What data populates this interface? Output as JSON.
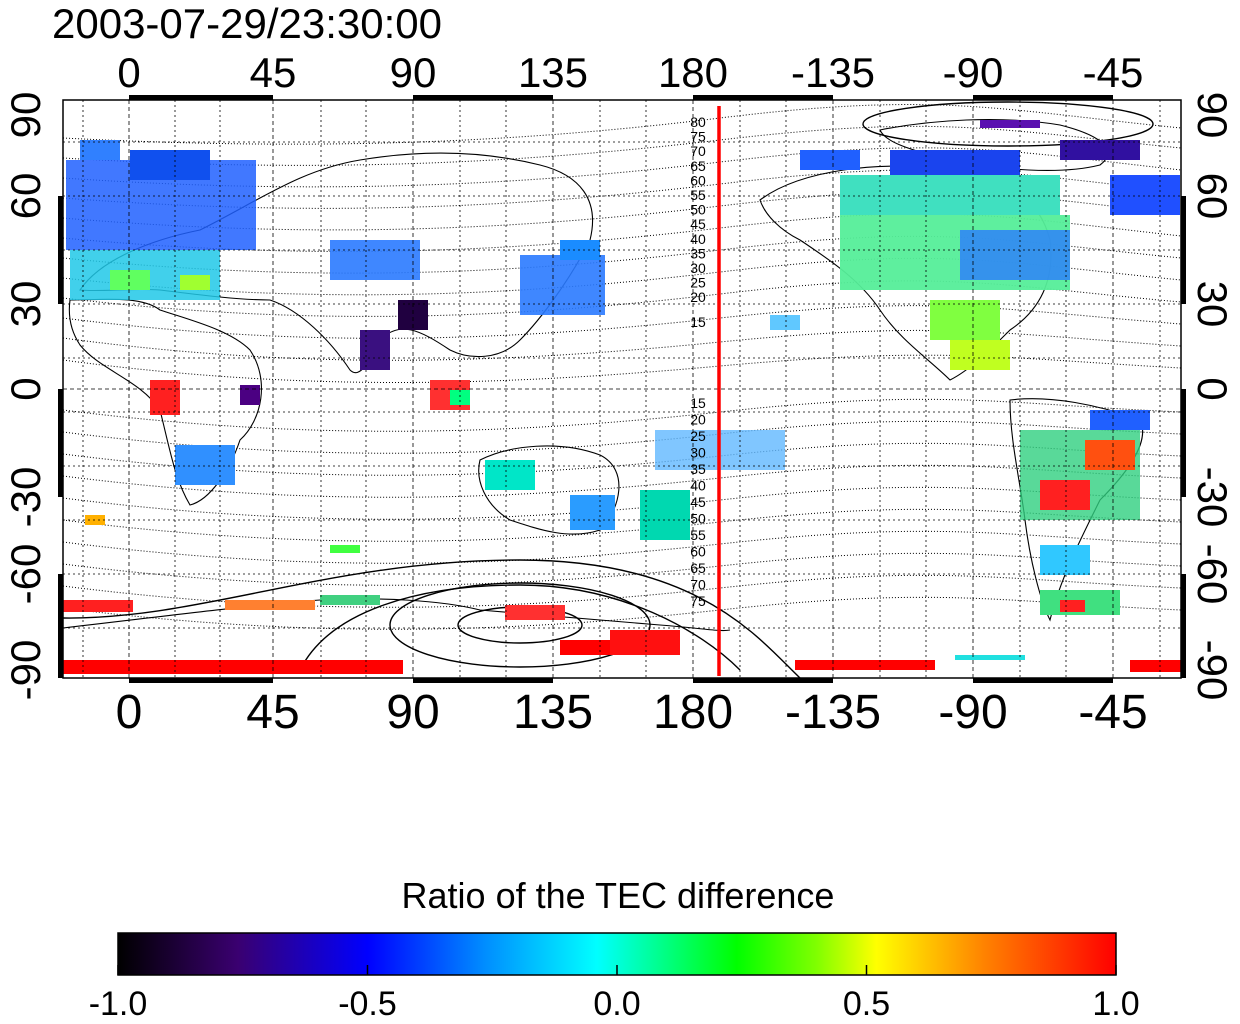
{
  "title": "2003-07-29/23:30:00",
  "map": {
    "top_lon_labels": [
      "0",
      "45",
      "90",
      "135",
      "180",
      "-135",
      "-90",
      "-45"
    ],
    "bottom_lon_labels": [
      "0",
      "45",
      "90",
      "135",
      "180",
      "-135",
      "-90",
      "-45"
    ],
    "left_lat_labels": [
      "90",
      "60",
      "30",
      "0",
      "-30",
      "-60",
      "-90"
    ],
    "right_lat_labels": [
      "90",
      "60",
      "30",
      "0",
      "-30",
      "-60",
      "-90"
    ],
    "red_meridian_label_note": "",
    "contour_labels_north": [
      "80",
      "75",
      "70",
      "65",
      "60",
      "55",
      "50",
      "45",
      "40",
      "35",
      "30",
      "25",
      "20",
      "15"
    ],
    "contour_labels_south": [
      "15",
      "20",
      "25",
      "30",
      "35",
      "40",
      "45",
      "50",
      "55",
      "60",
      "65",
      "70",
      "75"
    ],
    "colors": {
      "red_line": "#ff0000",
      "grid": "#000000"
    }
  },
  "colorbar": {
    "title": "Ratio of the TEC difference",
    "tick_labels": [
      "-1.0",
      "-0.5",
      "0.0",
      "0.5",
      "1.0"
    ],
    "range": [
      -1.0,
      1.0
    ],
    "colormap": [
      "#000000",
      "#3a0070",
      "#0000ff",
      "#0090ff",
      "#00ffff",
      "#00ff80",
      "#00ff00",
      "#80ff00",
      "#ffff00",
      "#ff8000",
      "#ff0000"
    ]
  }
}
